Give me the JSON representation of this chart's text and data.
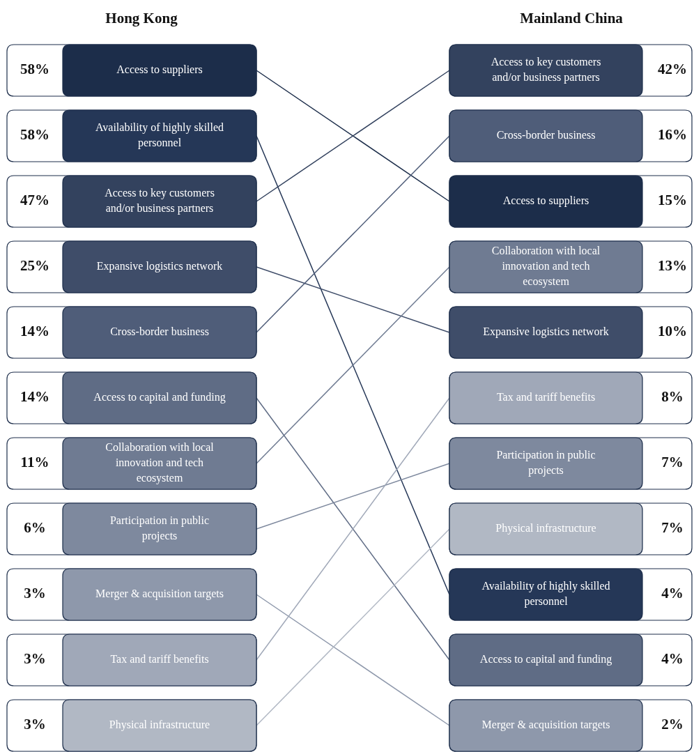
{
  "chart_data": {
    "type": "other",
    "categories": [
      "Access to suppliers",
      "Availability of highly skilled personnel",
      "Access to key customers and/or business partners",
      "Expansive logistics network",
      "Cross-border business",
      "Access to capital and funding",
      "Collaboration with local innovation and tech ecosystem",
      "Participation in public projects",
      "Merger & acquisition targets",
      "Tax and tariff benefits",
      "Physical infrastructure"
    ],
    "colors": [
      "#1c2d4a",
      "#253757",
      "#33425e",
      "#3f4d69",
      "#4f5d79",
      "#5f6c85",
      "#6f7b92",
      "#7e899e",
      "#8e98ab",
      "#a0a8b8",
      "#b1b8c4"
    ],
    "series": [
      {
        "name": "Hong Kong",
        "values": [
          58,
          58,
          47,
          25,
          14,
          14,
          11,
          6,
          3,
          3,
          3
        ],
        "value_labels": [
          "58%",
          "58%",
          "47%",
          "25%",
          "14%",
          "14%",
          "11%",
          "6%",
          "3%",
          "3%",
          "3%"
        ]
      },
      {
        "name": "Mainland China",
        "values": [
          15,
          4,
          42,
          10,
          16,
          4,
          13,
          7,
          2,
          8,
          7
        ],
        "value_labels": [
          "15%",
          "4%",
          "42%",
          "10%",
          "16%",
          "4%",
          "13%",
          "7%",
          "2%",
          "8%",
          "7%"
        ]
      }
    ],
    "data_labels": true
  }
}
